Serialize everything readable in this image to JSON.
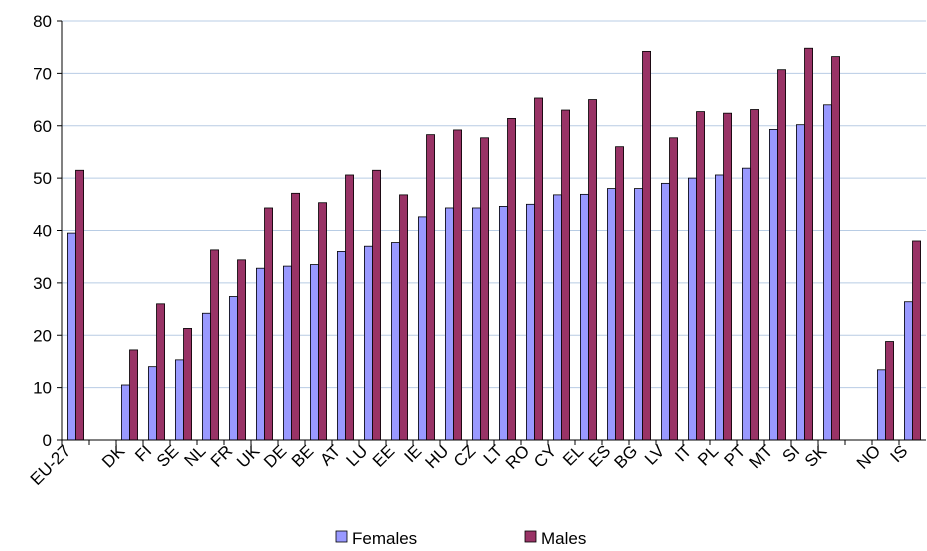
{
  "chart_data": {
    "type": "bar",
    "categories": [
      "EU-27",
      null,
      "DK",
      "FI",
      "SE",
      "NL",
      "FR",
      "UK",
      "DE",
      "BE",
      "AT",
      "LU",
      "EE",
      "IE",
      "HU",
      "CZ",
      "LT",
      "RO",
      "CY",
      "EL",
      "ES",
      "BG",
      "LV",
      "IT",
      "PL",
      "PT",
      "MT",
      "SI",
      "SK",
      null,
      "NO",
      "IS"
    ],
    "series": [
      {
        "name": "Females",
        "color": "#9999ff",
        "values": [
          39.5,
          null,
          10.5,
          14,
          15.3,
          24.2,
          27.4,
          32.8,
          33.2,
          33.5,
          36,
          37,
          37.7,
          42.6,
          44.3,
          44.3,
          44.6,
          45,
          46.8,
          46.9,
          48,
          48,
          49,
          50,
          50.6,
          51.9,
          59.3,
          60.2,
          64,
          null,
          13.4,
          26.4
        ]
      },
      {
        "name": "Males",
        "color": "#993366",
        "values": [
          51.5,
          null,
          17.2,
          26,
          21.3,
          36.3,
          34.4,
          44.3,
          47.1,
          45.3,
          50.6,
          51.5,
          46.8,
          58.3,
          59.2,
          57.7,
          61.4,
          65.3,
          63,
          65,
          56,
          74.2,
          57.7,
          62.7,
          62.4,
          63.1,
          70.7,
          74.8,
          73.2,
          null,
          18.8,
          38
        ]
      }
    ],
    "ylim": [
      0,
      80
    ],
    "yticks": [
      0,
      10,
      20,
      30,
      40,
      50,
      60,
      70,
      80
    ],
    "grid": true,
    "legend": "bottom"
  }
}
